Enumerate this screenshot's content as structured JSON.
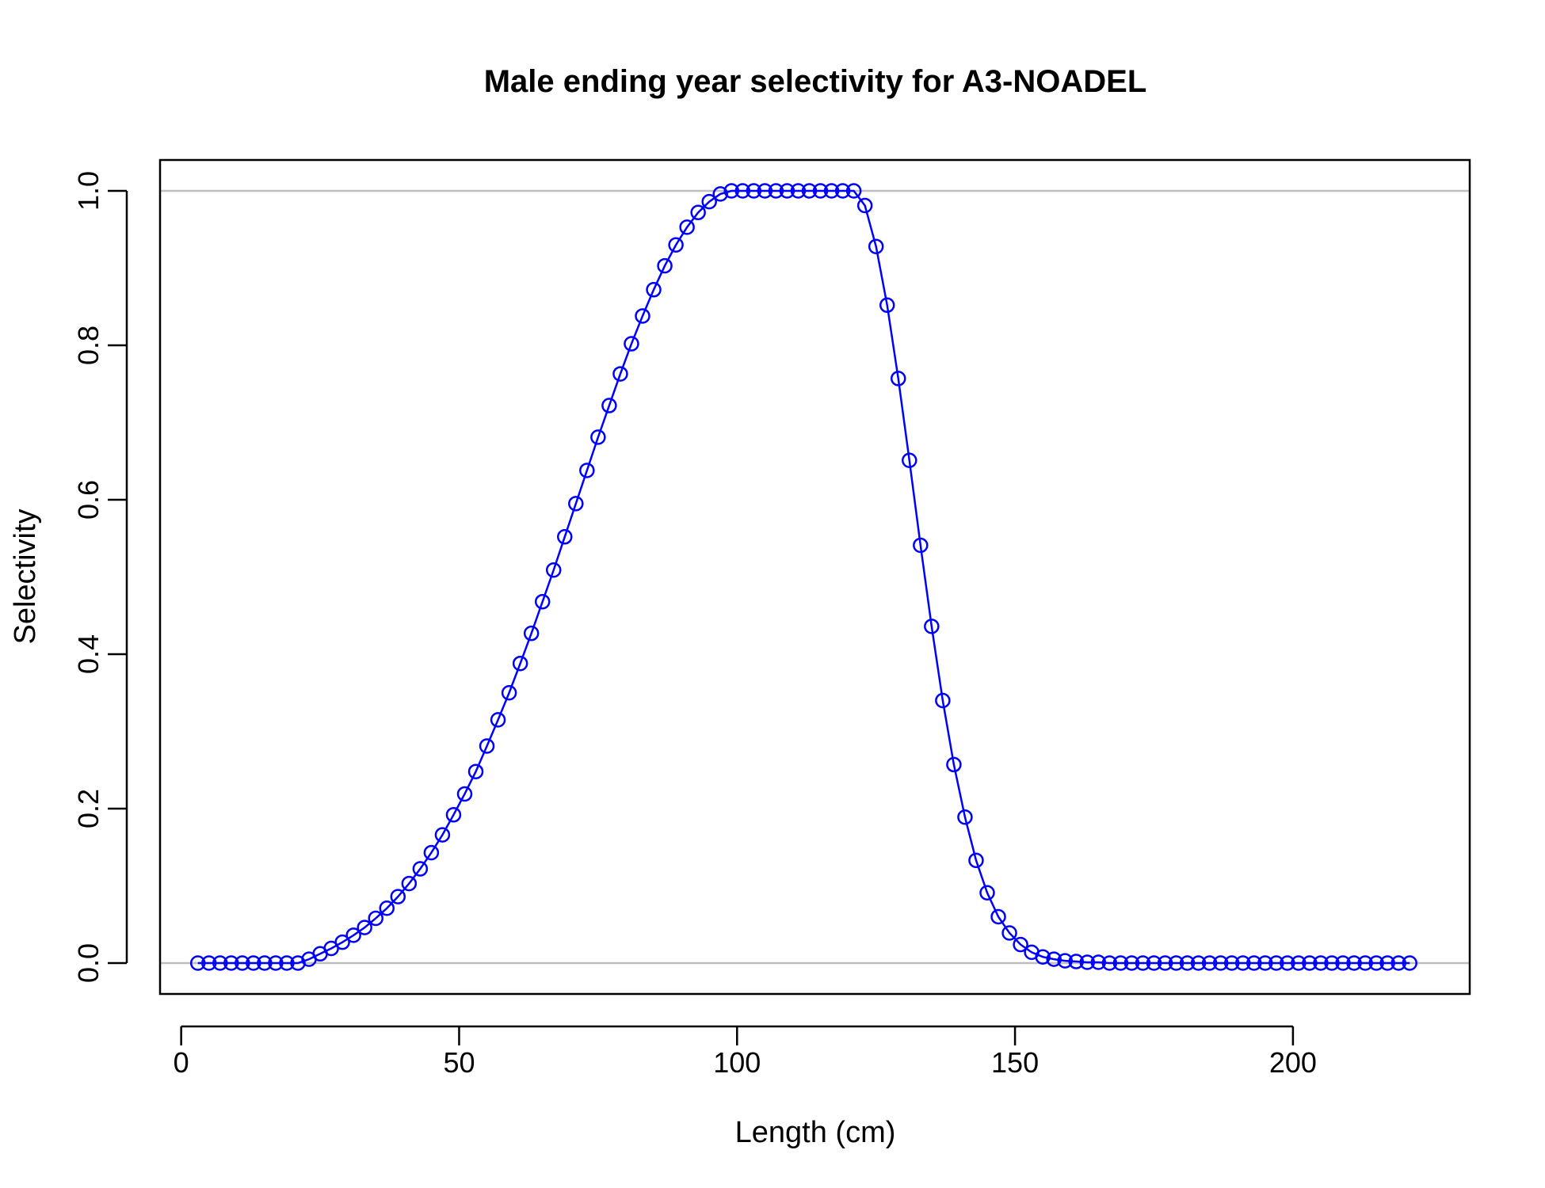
{
  "chart_data": {
    "type": "line",
    "title": "Male ending year selectivity for A3-NOADEL",
    "xlabel": "Length (cm)",
    "ylabel": "Selectivity",
    "xlim": [
      -3.8,
      231.8
    ],
    "ylim": [
      -0.04,
      1.04
    ],
    "x_ticks": [
      0,
      50,
      100,
      150,
      200
    ],
    "x_tick_labels": [
      "0",
      "50",
      "100",
      "150",
      "200"
    ],
    "y_ticks": [
      0.0,
      0.2,
      0.4,
      0.6,
      0.8,
      1.0
    ],
    "y_tick_labels": [
      "0.0",
      "0.2",
      "0.4",
      "0.6",
      "0.8",
      "1.0"
    ],
    "reference_lines_y": [
      0,
      1
    ],
    "grid": false,
    "legend": "none",
    "series": [
      {
        "marker": "open-circle",
        "line": true,
        "x": [
          3,
          5,
          7,
          9,
          11,
          13,
          15,
          17,
          19,
          21,
          23,
          25,
          27,
          29,
          31,
          33,
          35,
          37,
          39,
          41,
          43,
          45,
          47,
          49,
          51,
          53,
          55,
          57,
          59,
          61,
          63,
          65,
          67,
          69,
          71,
          73,
          75,
          77,
          79,
          81,
          83,
          85,
          87,
          89,
          91,
          93,
          95,
          97,
          99,
          101,
          103,
          105,
          107,
          109,
          111,
          113,
          115,
          117,
          119,
          121,
          123,
          125,
          127,
          129,
          131,
          133,
          135,
          137,
          139,
          141,
          143,
          145,
          147,
          149,
          151,
          153,
          155,
          157,
          159,
          161,
          163,
          165,
          167,
          169,
          171,
          173,
          175,
          177,
          179,
          181,
          183,
          185,
          187,
          189,
          191,
          193,
          195,
          197,
          199,
          201,
          203,
          205,
          207,
          209,
          211,
          213,
          215,
          217,
          219,
          221
        ],
        "values": [
          0,
          0,
          0,
          0,
          0,
          0,
          0,
          0,
          0,
          0,
          0.005,
          0.012,
          0.019,
          0.027,
          0.036,
          0.046,
          0.058,
          0.071,
          0.086,
          0.103,
          0.122,
          0.143,
          0.166,
          0.192,
          0.219,
          0.248,
          0.281,
          0.315,
          0.35,
          0.388,
          0.427,
          0.468,
          0.509,
          0.552,
          0.595,
          0.638,
          0.681,
          0.722,
          0.763,
          0.802,
          0.838,
          0.872,
          0.903,
          0.93,
          0.953,
          0.972,
          0.986,
          0.996,
          1.0,
          1.0,
          1.0,
          1.0,
          1.0,
          1.0,
          1.0,
          1.0,
          1.0,
          1.0,
          1.0,
          1.0,
          0.981,
          0.928,
          0.852,
          0.757,
          0.651,
          0.541,
          0.436,
          0.34,
          0.257,
          0.189,
          0.133,
          0.091,
          0.06,
          0.039,
          0.024,
          0.014,
          0.008,
          0.005,
          0.003,
          0.002,
          0.001,
          0.001,
          0,
          0,
          0,
          0,
          0,
          0,
          0,
          0,
          0,
          0,
          0,
          0,
          0,
          0,
          0,
          0,
          0,
          0,
          0,
          0,
          0,
          0,
          0,
          0,
          0,
          0,
          0,
          0
        ]
      }
    ]
  },
  "colors": {
    "series": "#0000ff",
    "reference_line": "#bebebe",
    "axis": "#000000"
  }
}
